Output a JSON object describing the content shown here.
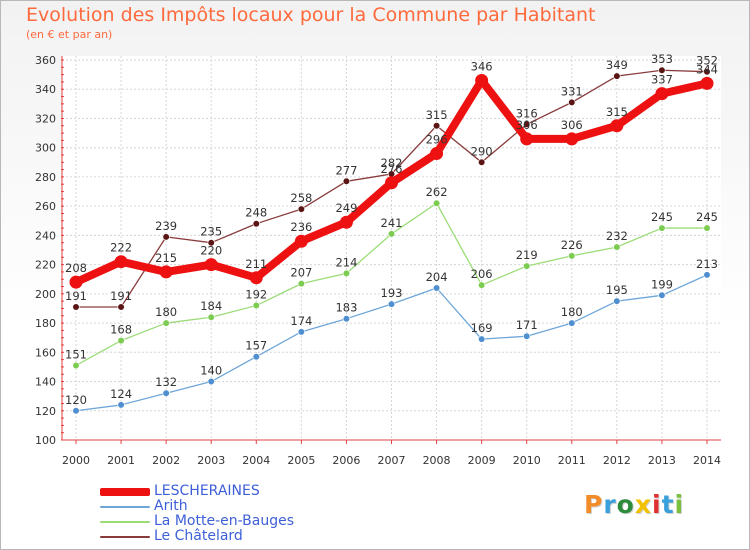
{
  "title": "Evolution des Impôts locaux pour la Commune par Habitant",
  "subtitle": "(en € et par an)",
  "logo": {
    "text": "Proxiti",
    "colors": [
      "#f28c28",
      "#3aa0dc",
      "#2c8c3c",
      "#f2c200",
      "#e03030",
      "#3aa0dc",
      "#7cc040"
    ]
  },
  "chart_data": {
    "type": "line",
    "title": "Evolution des Impôts locaux pour la Commune par Habitant",
    "subtitle": "(en € et par an)",
    "xlabel": "",
    "ylabel": "",
    "x": [
      "2000",
      "2001",
      "2002",
      "2003",
      "2004",
      "2005",
      "2006",
      "2007",
      "2008",
      "2009",
      "2010",
      "2011",
      "2012",
      "2013",
      "2014"
    ],
    "ylim": [
      100,
      360
    ],
    "yticks": [
      100,
      120,
      140,
      160,
      180,
      200,
      220,
      240,
      260,
      280,
      300,
      320,
      340,
      360
    ],
    "grid": true,
    "legend_position": "bottom-left",
    "series": [
      {
        "name": "LESCHERAINES",
        "color": "#ee1111",
        "width": "thick",
        "values": [
          208,
          222,
          215,
          220,
          211,
          236,
          249,
          276,
          296,
          346,
          306,
          306,
          315,
          337,
          344
        ],
        "labels": [
          "208",
          "222",
          "215",
          "220",
          "211",
          "236",
          "249",
          "276",
          "296",
          "346",
          "306",
          "306",
          "315",
          "337",
          "344"
        ]
      },
      {
        "name": "Arith",
        "color": "#6ea6d8",
        "marker": "#4f8fd0",
        "width": "thin",
        "values": [
          120,
          124,
          132,
          140,
          157,
          174,
          183,
          193,
          204,
          169,
          171,
          180,
          195,
          199,
          213
        ],
        "labels": [
          "120",
          "124",
          "132",
          "140",
          "157",
          "174",
          "183",
          "193",
          "204",
          "169",
          "171",
          "180",
          "195",
          "199",
          "213"
        ]
      },
      {
        "name": "La Motte-en-Bauges",
        "color": "#9bdc78",
        "marker": "#7ccc52",
        "width": "thin",
        "values": [
          151,
          168,
          180,
          184,
          192,
          207,
          214,
          241,
          262,
          206,
          219,
          226,
          232,
          245,
          245
        ],
        "labels": [
          "151",
          "168",
          "180",
          "184",
          "192",
          "207",
          "214",
          "241",
          "262",
          "206",
          "219",
          "226",
          "232",
          "245",
          "245"
        ]
      },
      {
        "name": "Le Châtelard",
        "color": "#8a3c3c",
        "marker": "#5a1414",
        "width": "thin",
        "values": [
          191,
          191,
          239,
          235,
          248,
          258,
          277,
          282,
          315,
          290,
          316,
          331,
          349,
          353,
          352
        ],
        "labels": [
          "191",
          "191",
          "239",
          "235",
          "248",
          "258",
          "277",
          "282",
          "315",
          "290",
          "316",
          "331",
          "349",
          "353",
          "352"
        ]
      }
    ]
  }
}
